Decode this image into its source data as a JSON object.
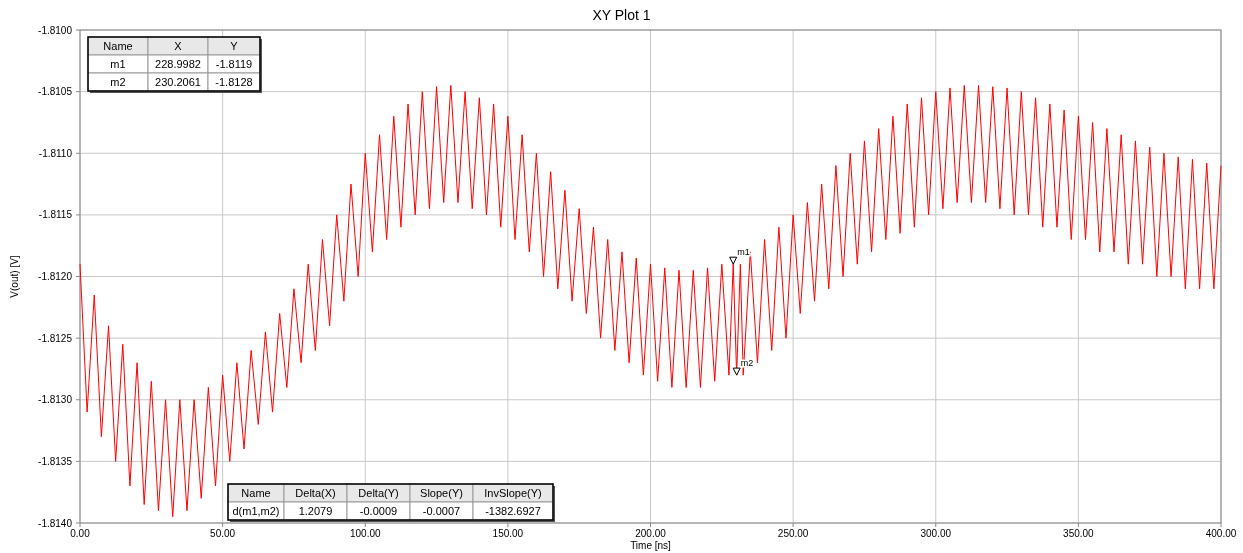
{
  "chart_data": {
    "type": "line",
    "title": "XY Plot 1",
    "xlabel": "Time [ns]",
    "ylabel": "V(out) [V]",
    "xlim": [
      0,
      400
    ],
    "ylim": [
      -1.814,
      -1.81
    ],
    "xticks": [
      {
        "value": 0,
        "label": "0.00"
      },
      {
        "value": 50,
        "label": "50.00"
      },
      {
        "value": 100,
        "label": "100.00"
      },
      {
        "value": 150,
        "label": "150.00"
      },
      {
        "value": 200,
        "label": "200.00"
      },
      {
        "value": 250,
        "label": "250.00"
      },
      {
        "value": 300,
        "label": "300.00"
      },
      {
        "value": 350,
        "label": "350.00"
      },
      {
        "value": 400,
        "label": "400.00"
      }
    ],
    "yticks": [
      {
        "value": -1.814,
        "label": "-1.8140"
      },
      {
        "value": -1.8135,
        "label": "-1.8135"
      },
      {
        "value": -1.813,
        "label": "-1.8130"
      },
      {
        "value": -1.8125,
        "label": "-1.8125"
      },
      {
        "value": -1.812,
        "label": "-1.8120"
      },
      {
        "value": -1.8115,
        "label": "-1.8115"
      },
      {
        "value": -1.811,
        "label": "-1.8110"
      },
      {
        "value": -1.8105,
        "label": "-1.8105"
      },
      {
        "value": -1.81,
        "label": "-1.8100"
      }
    ],
    "grid": true,
    "x": [
      0,
      2.5,
      5,
      7.5,
      10,
      12.5,
      15,
      17.5,
      20,
      22.5,
      25,
      27.5,
      30,
      32.5,
      35,
      37.5,
      40,
      42.5,
      45,
      47.5,
      50,
      52.5,
      55,
      57.5,
      60,
      62.5,
      65,
      67.5,
      70,
      72.5,
      75,
      77.5,
      80,
      82.5,
      85,
      87.5,
      90,
      92.5,
      95,
      97.5,
      100,
      102.5,
      105,
      107.5,
      110,
      112.5,
      115,
      117.5,
      120,
      122.5,
      125,
      127.5,
      130,
      132.5,
      135,
      137.5,
      140,
      142.5,
      145,
      147.5,
      150,
      152.5,
      155,
      157.5,
      160,
      162.5,
      165,
      167.5,
      170,
      172.5,
      175,
      177.5,
      180,
      182.5,
      185,
      187.5,
      190,
      192.5,
      195,
      197.5,
      200,
      202.5,
      205,
      207.5,
      210,
      212.5,
      215,
      217.5,
      220,
      222.5,
      225,
      227.5,
      229,
      230.2,
      231.5,
      232.5,
      235,
      237.5,
      240,
      242.5,
      245,
      247.5,
      250,
      252.5,
      255,
      257.5,
      260,
      262.5,
      265,
      267.5,
      270,
      272.5,
      275,
      277.5,
      280,
      282.5,
      285,
      287.5,
      290,
      292.5,
      295,
      297.5,
      300,
      302.5,
      305,
      307.5,
      310,
      312.5,
      315,
      317.5,
      320,
      322.5,
      325,
      327.5,
      330,
      332.5,
      335,
      337.5,
      340,
      342.5,
      345,
      347.5,
      350,
      352.5,
      355,
      357.5,
      360,
      362.5,
      365,
      367.5,
      370,
      372.5,
      375,
      377.5,
      380,
      382.5,
      385,
      387.5,
      390,
      392.5,
      395,
      397.5,
      400
    ],
    "series": [
      {
        "color": "#ff0000",
        "values": [
          -1.8119,
          -1.8131,
          -1.81215,
          -1.8133,
          -1.8124,
          -1.8135,
          -1.81255,
          -1.8137,
          -1.8127,
          -1.81385,
          -1.81285,
          -1.8139,
          -1.813,
          -1.81395,
          -1.813,
          -1.8139,
          -1.813,
          -1.8138,
          -1.8129,
          -1.8137,
          -1.8128,
          -1.8135,
          -1.8127,
          -1.8134,
          -1.8126,
          -1.8132,
          -1.81245,
          -1.8131,
          -1.8123,
          -1.8129,
          -1.8121,
          -1.8127,
          -1.8119,
          -1.8126,
          -1.8117,
          -1.8124,
          -1.8115,
          -1.8122,
          -1.81125,
          -1.812,
          -1.811,
          -1.8118,
          -1.81085,
          -1.8117,
          -1.8107,
          -1.8116,
          -1.8106,
          -1.8115,
          -1.8105,
          -1.81145,
          -1.81046,
          -1.8114,
          -1.81045,
          -1.8114,
          -1.8105,
          -1.81145,
          -1.81055,
          -1.8115,
          -1.8106,
          -1.8116,
          -1.8107,
          -1.8117,
          -1.81085,
          -1.8118,
          -1.811,
          -1.812,
          -1.81115,
          -1.8121,
          -1.8113,
          -1.8122,
          -1.81145,
          -1.8123,
          -1.8116,
          -1.8125,
          -1.8117,
          -1.8126,
          -1.8118,
          -1.8127,
          -1.81185,
          -1.8128,
          -1.8119,
          -1.81285,
          -1.81193,
          -1.8129,
          -1.81195,
          -1.8129,
          -1.81195,
          -1.8129,
          -1.81193,
          -1.81285,
          -1.8119,
          -1.8128,
          -1.8119,
          -1.8128,
          -1.8119,
          -1.8128,
          -1.8118,
          -1.8127,
          -1.8117,
          -1.8126,
          -1.8116,
          -1.8125,
          -1.8115,
          -1.8123,
          -1.8114,
          -1.8122,
          -1.81125,
          -1.8121,
          -1.8111,
          -1.812,
          -1.811,
          -1.8119,
          -1.8109,
          -1.8118,
          -1.8108,
          -1.8117,
          -1.8107,
          -1.81165,
          -1.8106,
          -1.8116,
          -1.81055,
          -1.8115,
          -1.8105,
          -1.81145,
          -1.81047,
          -1.8114,
          -1.81045,
          -1.8114,
          -1.81045,
          -1.8114,
          -1.81046,
          -1.81145,
          -1.81047,
          -1.8115,
          -1.8105,
          -1.8115,
          -1.81055,
          -1.8116,
          -1.8106,
          -1.8116,
          -1.81065,
          -1.8117,
          -1.8107,
          -1.8117,
          -1.81075,
          -1.8118,
          -1.8108,
          -1.8118,
          -1.81085,
          -1.8119,
          -1.8109,
          -1.8119,
          -1.81095,
          -1.812,
          -1.811,
          -1.812,
          -1.81103,
          -1.8121,
          -1.81105,
          -1.8121,
          -1.81108,
          -1.8121,
          -1.8111
        ]
      }
    ],
    "annotations": [
      {
        "text": "m1",
        "x": 228.9982,
        "y": -1.8119
      },
      {
        "text": "m2",
        "x": 230.2061,
        "y": -1.8128
      },
      "Name",
      "X",
      "Y",
      "m1",
      "228.9982",
      "-1.8119",
      "m2",
      "230.2061",
      "-1.8128",
      "Name",
      "Delta(X)",
      "Delta(Y)",
      "Slope(Y)",
      "InvSlope(Y)",
      "d(m1,m2)",
      "1.2079",
      "-0.0009",
      "-0.0007",
      "-1382.6927"
    ]
  }
}
